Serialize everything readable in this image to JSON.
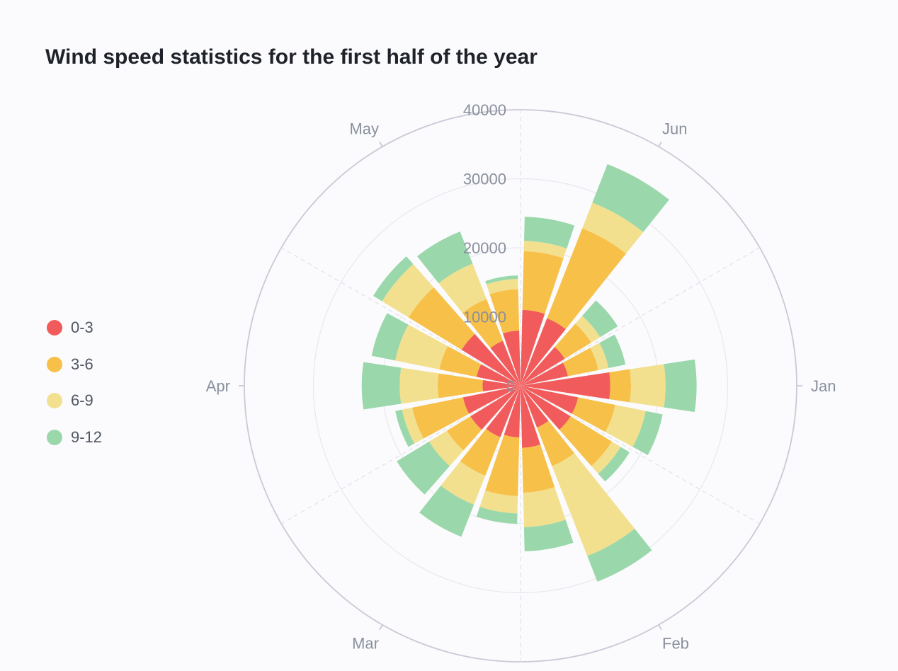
{
  "chart_data": {
    "type": "bar",
    "subtype": "polar-stacked-bar",
    "title": "Wind speed statistics for the first half of the year",
    "categories": [
      "Jan",
      "Feb",
      "Mar",
      "Apr",
      "May",
      "Jun"
    ],
    "radial_ticks": [
      "0",
      "10000",
      "20000",
      "30000",
      "40000"
    ],
    "rlim": [
      0,
      40000
    ],
    "grid": true,
    "legend_position": "left-middle",
    "groups_per_category": 3,
    "series": [
      {
        "name": "0-3",
        "color": "#f25b5b",
        "values": [
          [
            7000,
            13000,
            8500
          ],
          [
            8500,
            6500,
            9000
          ],
          [
            7500,
            8000,
            8500
          ],
          [
            8500,
            5500,
            6500
          ],
          [
            10000,
            7000,
            8000
          ],
          [
            11000,
            10500,
            7500
          ]
        ]
      },
      {
        "name": "3-6",
        "color": "#f7c048",
        "values": [
          [
            4500,
            3000,
            5500
          ],
          [
            7000,
            6000,
            6500
          ],
          [
            8500,
            6000,
            4000
          ],
          [
            7500,
            6500,
            5500
          ],
          [
            9000,
            6500,
            6000
          ],
          [
            8500,
            14000,
            4500
          ]
        ]
      },
      {
        "name": "6-9",
        "color": "#f3e08e",
        "values": [
          [
            1500,
            5000,
            4500
          ],
          [
            1500,
            14000,
            5000
          ],
          [
            2500,
            4500,
            3000
          ],
          [
            1500,
            5500,
            6500
          ],
          [
            4500,
            5500,
            1500
          ],
          [
            1500,
            4000,
            1500
          ]
        ]
      },
      {
        "name": "9-12",
        "color": "#9ad8ac",
        "values": [
          [
            2500,
            4500,
            2500
          ],
          [
            1500,
            4000,
            3500
          ],
          [
            1500,
            5000,
            5500
          ],
          [
            1000,
            5500,
            3500
          ],
          [
            1500,
            5000,
            500
          ],
          [
            3500,
            6000,
            3000
          ]
        ]
      }
    ]
  }
}
